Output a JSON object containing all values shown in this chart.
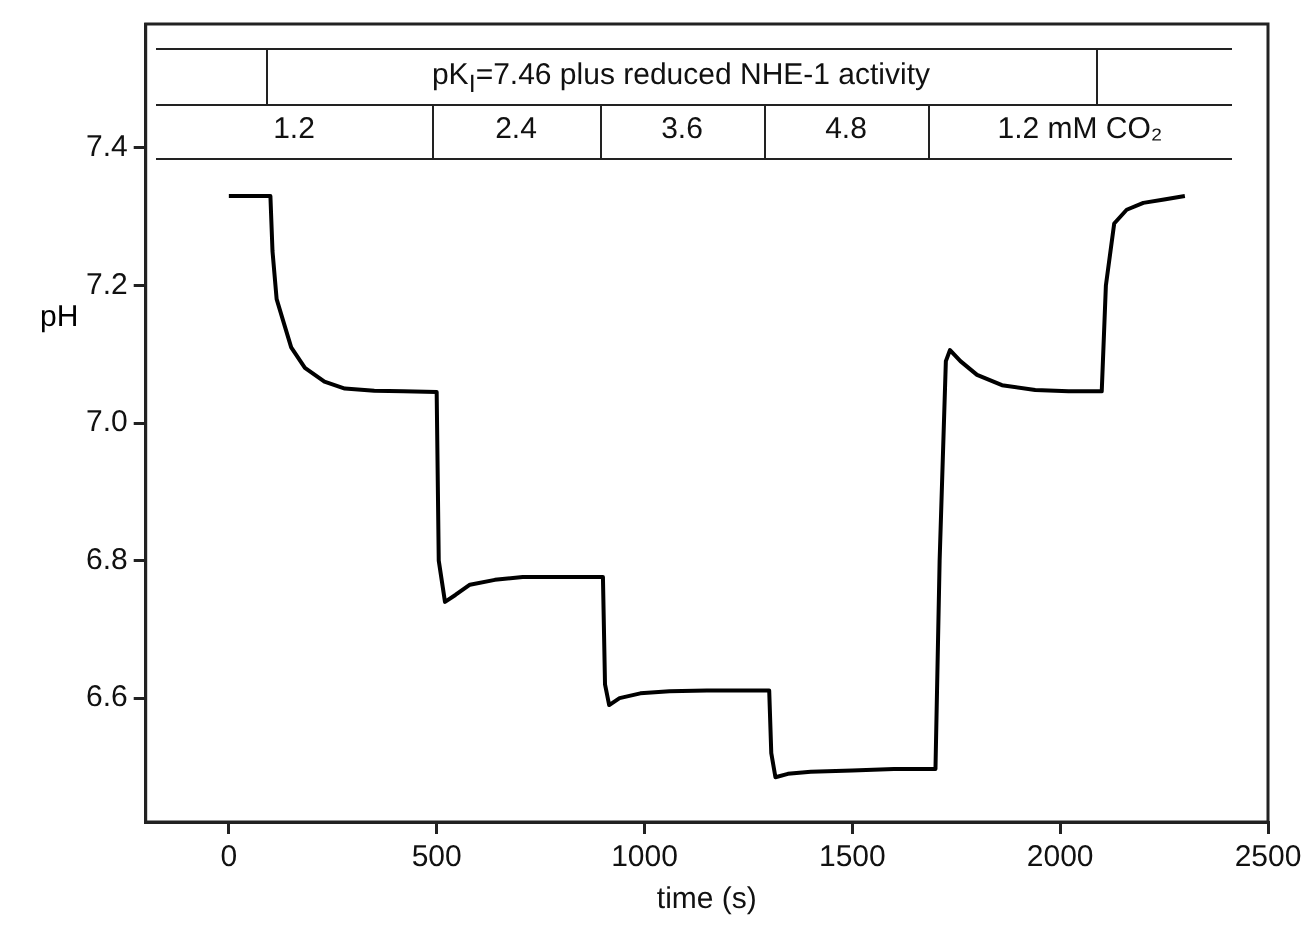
{
  "chart_data": {
    "type": "line",
    "xlabel": "time (s)",
    "ylabel": "pH",
    "annotations": [
      "pK$_{I}$=7.46 plus reduced NHE-1 activity",
      "1.2",
      "2.4",
      "3.6",
      "4.8",
      "1.2 mM CO₂"
    ],
    "series": [
      {
        "color": "#000000",
        "x": [
          0,
          100,
          105,
          115,
          130,
          150,
          183,
          230,
          279,
          350,
          420,
          500,
          505,
          520,
          545,
          580,
          640,
          707,
          800,
          900,
          905,
          915,
          940,
          990,
          1060,
          1150,
          1300,
          1305,
          1315,
          1345,
          1400,
          1500,
          1600,
          1700,
          1710,
          1725,
          1735,
          1760,
          1800,
          1860,
          1940,
          2020,
          2100,
          2110,
          2130,
          2160,
          2200,
          2250,
          2300
        ],
        "values": [
          7.33,
          7.33,
          7.25,
          7.18,
          7.15,
          7.11,
          7.08,
          7.06,
          7.05,
          7.047,
          7.046,
          7.045,
          6.8,
          6.74,
          6.75,
          6.765,
          6.772,
          6.776,
          6.776,
          6.776,
          6.62,
          6.59,
          6.6,
          6.607,
          6.61,
          6.611,
          6.611,
          6.52,
          6.485,
          6.49,
          6.493,
          6.495,
          6.497,
          6.497,
          6.8,
          7.09,
          7.106,
          7.09,
          7.07,
          7.055,
          7.048,
          7.046,
          7.046,
          7.2,
          7.29,
          7.31,
          7.32,
          7.325,
          7.33
        ]
      }
    ],
    "xlim": [
      -200,
      2500
    ],
    "xticks": [
      0,
      500,
      1000,
      1500,
      2000,
      2500
    ],
    "ylim": [
      6.42,
      7.58
    ],
    "yticks": [
      {
        "value": 6.6,
        "label": "6.6"
      },
      {
        "value": 6.8,
        "label": "6.8"
      },
      {
        "value": 7,
        "label": "7.0"
      },
      {
        "value": 7.2,
        "label": "7.2"
      },
      {
        "value": 7.4,
        "label": "7.4"
      }
    ],
    "grid": false,
    "legend": false,
    "marker": "none",
    "line_style": "solid"
  }
}
